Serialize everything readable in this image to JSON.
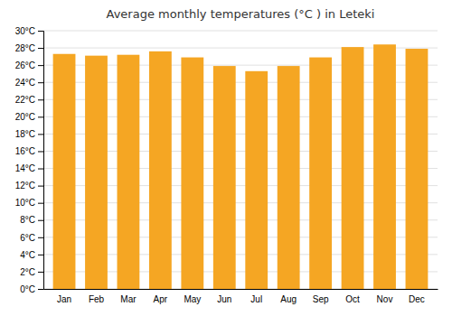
{
  "chart_data": {
    "type": "bar",
    "title": "Average monthly temperatures (°C ) in Leteki",
    "categories": [
      "Jan",
      "Feb",
      "Mar",
      "Apr",
      "May",
      "Jun",
      "Jul",
      "Aug",
      "Sep",
      "Oct",
      "Nov",
      "Dec"
    ],
    "values": [
      27.3,
      27.1,
      27.2,
      27.6,
      26.9,
      25.9,
      25.3,
      25.9,
      26.9,
      28.1,
      28.4,
      27.9
    ],
    "color": "#F5A623",
    "ylim": [
      0,
      30
    ],
    "yticks": [
      {
        "value": 0,
        "label": "0°C"
      },
      {
        "value": 2,
        "label": "2°C"
      },
      {
        "value": 4,
        "label": "4°C"
      },
      {
        "value": 6,
        "label": "6°C"
      },
      {
        "value": 8,
        "label": "8°C"
      },
      {
        "value": 10,
        "label": "10°C"
      },
      {
        "value": 12,
        "label": "12°C"
      },
      {
        "value": 14,
        "label": "14°C"
      },
      {
        "value": 16,
        "label": "16°C"
      },
      {
        "value": 18,
        "label": "18°C"
      },
      {
        "value": 20,
        "label": "20°C"
      },
      {
        "value": 22,
        "label": "22°C"
      },
      {
        "value": 24,
        "label": "24°C"
      },
      {
        "value": 26,
        "label": "26°C"
      },
      {
        "value": 28,
        "label": "28°C"
      },
      {
        "value": 30,
        "label": "30°C"
      }
    ],
    "grid": true
  }
}
